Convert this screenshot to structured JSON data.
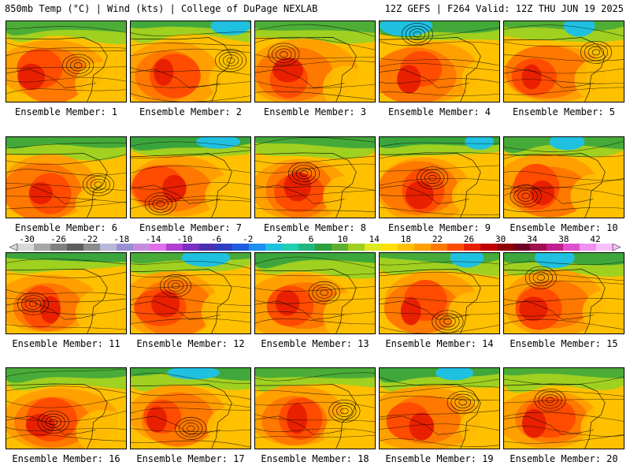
{
  "header": {
    "left": "850mb Temp (°C) | Wind (kts) | College of DuPage NEXLAB",
    "right": "12Z GEFS | F264 Valid: 12Z THU JUN 19 2025"
  },
  "members": [
    {
      "label": "Ensemble Member: 1"
    },
    {
      "label": "Ensemble Member: 2"
    },
    {
      "label": "Ensemble Member: 3"
    },
    {
      "label": "Ensemble Member: 4"
    },
    {
      "label": "Ensemble Member: 5"
    },
    {
      "label": "Ensemble Member: 6"
    },
    {
      "label": "Ensemble Member: 7"
    },
    {
      "label": "Ensemble Member: 8"
    },
    {
      "label": "Ensemble Member: 9"
    },
    {
      "label": "Ensemble Member: 10"
    },
    {
      "label": "Ensemble Member: 11"
    },
    {
      "label": "Ensemble Member: 12"
    },
    {
      "label": "Ensemble Member: 13"
    },
    {
      "label": "Ensemble Member: 14"
    },
    {
      "label": "Ensemble Member: 15"
    },
    {
      "label": "Ensemble Member: 16"
    },
    {
      "label": "Ensemble Member: 17"
    },
    {
      "label": "Ensemble Member: 18"
    },
    {
      "label": "Ensemble Member: 19"
    },
    {
      "label": "Ensemble Member: 20"
    }
  ],
  "colorbar": {
    "labels": [
      "-30",
      "-26",
      "-22",
      "-18",
      "-14",
      "-10",
      "-6",
      "-2",
      "2",
      "6",
      "10",
      "14",
      "18",
      "22",
      "26",
      "30",
      "34",
      "38",
      "42"
    ],
    "colors": [
      "#d9d9d9",
      "#a6a6a6",
      "#808080",
      "#5e5e5e",
      "#8c8c8c",
      "#b8b8d8",
      "#9a8fd0",
      "#c88ae0",
      "#e070e8",
      "#b040d0",
      "#7a2fc0",
      "#4b2fb0",
      "#2f3fc0",
      "#1f5fe0",
      "#2090f0",
      "#20c0e0",
      "#20d0b0",
      "#20b880",
      "#30a040",
      "#60b030",
      "#a0d020",
      "#e0e820",
      "#ffe000",
      "#ffc000",
      "#ffa000",
      "#ff7800",
      "#ff4c00",
      "#e82000",
      "#c00000",
      "#900000",
      "#700020",
      "#a01050",
      "#c02090",
      "#e050d0",
      "#f090f0",
      "#f8c0f8"
    ]
  }
}
